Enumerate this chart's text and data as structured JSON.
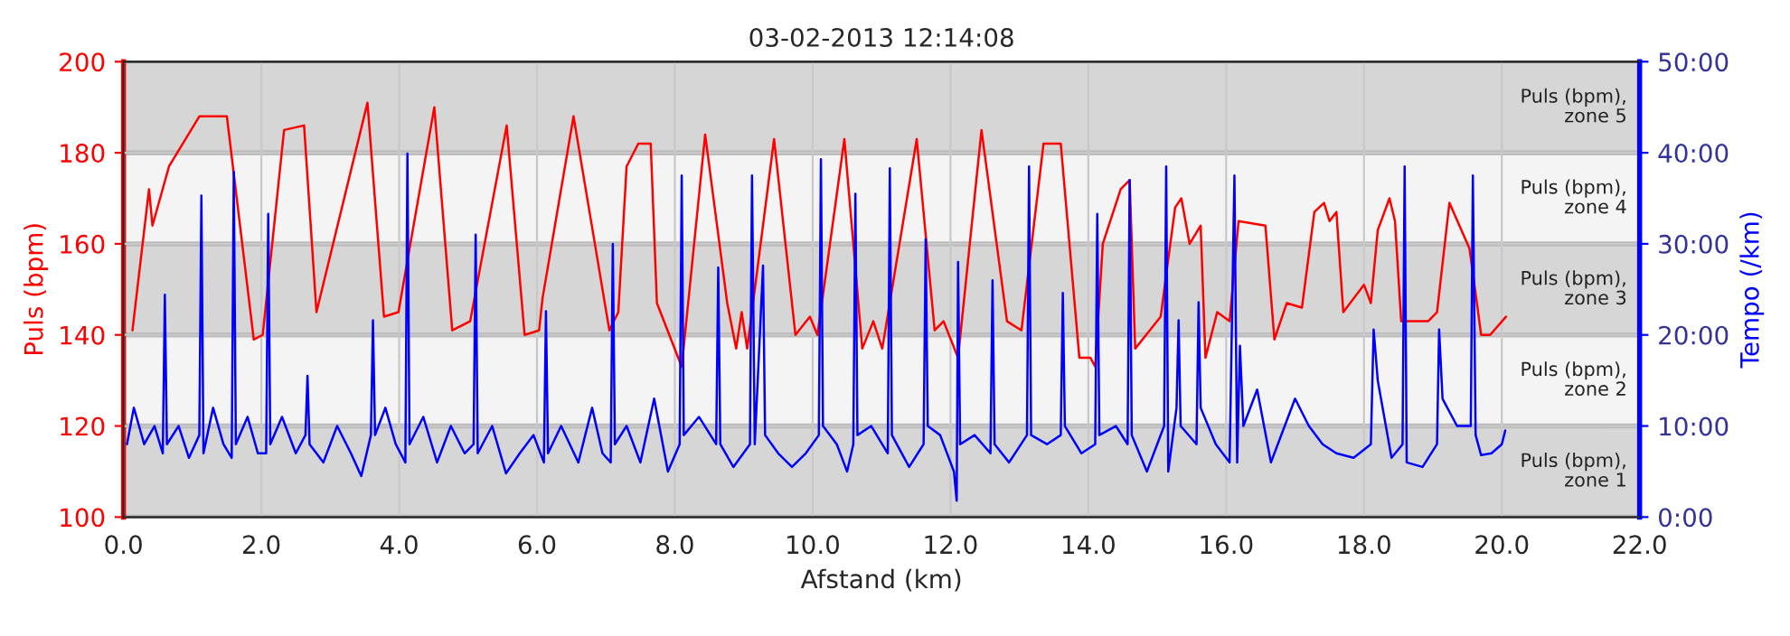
{
  "chart_data": {
    "type": "line",
    "title": "03-02-2013 12:14:08",
    "xlabel": "Afstand (km)",
    "ylabel": "Puls (bpm)",
    "y2label": "Tempo (/km)",
    "xlim": [
      0,
      22
    ],
    "xticks": [
      {
        "value": 0,
        "label": "0.0"
      },
      {
        "value": 2,
        "label": "2.0"
      },
      {
        "value": 4,
        "label": "4.0"
      },
      {
        "value": 6,
        "label": "6.0"
      },
      {
        "value": 8,
        "label": "8.0"
      },
      {
        "value": 10,
        "label": "10.0"
      },
      {
        "value": 12,
        "label": "12.0"
      },
      {
        "value": 14,
        "label": "14.0"
      },
      {
        "value": 16,
        "label": "16.0"
      },
      {
        "value": 18,
        "label": "18.0"
      },
      {
        "value": 20,
        "label": "20.0"
      },
      {
        "value": 22,
        "label": "22.0"
      }
    ],
    "ylim": [
      100,
      200
    ],
    "yticks": [
      100,
      120,
      140,
      160,
      180,
      200
    ],
    "y2lim": [
      0,
      50
    ],
    "y2ticks": [
      {
        "value": 0,
        "label": "0:00"
      },
      {
        "value": 10,
        "label": "10:00"
      },
      {
        "value": 20,
        "label": "20:00"
      },
      {
        "value": 30,
        "label": "30:00"
      },
      {
        "value": 40,
        "label": "40:00"
      },
      {
        "value": 50,
        "label": "50:00"
      }
    ],
    "grid": true,
    "bands": [
      {
        "axis": "y",
        "from": 100,
        "to": 120,
        "label": "Puls (bpm), zone 1",
        "color": "#d6d6d6"
      },
      {
        "axis": "y",
        "from": 120,
        "to": 140,
        "label": "Puls (bpm), zone 2",
        "color": "#f4f4f4"
      },
      {
        "axis": "y",
        "from": 140,
        "to": 160,
        "label": "Puls (bpm), zone 3",
        "color": "#d6d6d6"
      },
      {
        "axis": "y",
        "from": 160,
        "to": 180,
        "label": "Puls (bpm), zone 4",
        "color": "#f4f4f4"
      },
      {
        "axis": "y",
        "from": 180,
        "to": 200,
        "label": "Puls (bpm), zone 5",
        "color": "#d6d6d6"
      }
    ],
    "series": [
      {
        "color": "#ff0000",
        "axis": "y",
        "x": [
          0.13,
          0.37,
          0.42,
          0.66,
          1.1,
          1.5,
          1.89,
          2.02,
          2.33,
          2.62,
          2.8,
          3.54,
          3.78,
          3.99,
          4.07,
          4.51,
          4.77,
          5.03,
          5.56,
          5.82,
          6.03,
          6.08,
          6.53,
          7.05,
          7.18,
          7.3,
          7.47,
          7.65,
          7.74,
          8.1,
          8.44,
          8.76,
          8.89,
          8.97,
          9.05,
          9.44,
          9.75,
          9.96,
          10.07,
          10.46,
          10.72,
          10.88,
          11.01,
          11.51,
          11.77,
          11.9,
          12.11,
          12.45,
          12.82,
          13.03,
          13.35,
          13.6,
          13.87,
          14.03,
          14.1,
          14.21,
          14.47,
          14.6,
          14.68,
          15.05,
          15.26,
          15.35,
          15.47,
          15.63,
          15.7,
          15.87,
          16.05,
          16.18,
          16.57,
          16.7,
          16.88,
          17.1,
          17.28,
          17.42,
          17.5,
          17.6,
          17.7,
          18.0,
          18.1,
          18.2,
          18.37,
          18.45,
          18.54,
          18.93,
          19.06,
          19.24,
          19.53,
          19.63,
          19.7,
          19.83,
          20.06
        ],
        "values": [
          141,
          172,
          164,
          177,
          188,
          188,
          139,
          140,
          185,
          186,
          145,
          191,
          144,
          145,
          152,
          190,
          141,
          143,
          186,
          140,
          141,
          148,
          188,
          141,
          145,
          177,
          182,
          182,
          147,
          133,
          184,
          147,
          137,
          145,
          137,
          183,
          140,
          144,
          140,
          183,
          137,
          143,
          137,
          183,
          141,
          143,
          135,
          185,
          143,
          141,
          182,
          182,
          135,
          135,
          133,
          160,
          172,
          174,
          137,
          144,
          168,
          170,
          160,
          164,
          135,
          145,
          143,
          165,
          164,
          139,
          147,
          146,
          167,
          169,
          165,
          167,
          145,
          151,
          147,
          163,
          170,
          165,
          143,
          143,
          145,
          169,
          159,
          148,
          140,
          140,
          144
        ]
      },
      {
        "color": "#0000ff",
        "axis": "y2",
        "x": [
          0.05,
          0.15,
          0.3,
          0.45,
          0.57,
          0.6,
          0.63,
          0.8,
          0.95,
          1.1,
          1.13,
          1.16,
          1.3,
          1.45,
          1.57,
          1.6,
          1.63,
          1.8,
          1.95,
          2.07,
          2.1,
          2.13,
          2.3,
          2.5,
          2.64,
          2.67,
          2.7,
          2.9,
          3.1,
          3.3,
          3.45,
          3.59,
          3.62,
          3.65,
          3.8,
          3.95,
          4.09,
          4.12,
          4.15,
          4.35,
          4.55,
          4.75,
          4.95,
          5.08,
          5.11,
          5.14,
          5.35,
          5.55,
          5.75,
          5.95,
          6.1,
          6.13,
          6.16,
          6.35,
          6.6,
          6.8,
          6.95,
          7.07,
          7.1,
          7.13,
          7.3,
          7.5,
          7.7,
          7.9,
          8.07,
          8.1,
          8.13,
          8.35,
          8.6,
          8.63,
          8.66,
          8.85,
          9.09,
          9.12,
          9.16,
          9.28,
          9.31,
          9.5,
          9.7,
          9.9,
          10.09,
          10.12,
          10.15,
          10.35,
          10.5,
          10.59,
          10.62,
          10.65,
          10.85,
          11.09,
          11.12,
          11.15,
          11.4,
          11.61,
          11.64,
          11.67,
          11.85,
          12.05,
          12.09,
          12.11,
          12.14,
          12.35,
          12.58,
          12.61,
          12.64,
          12.85,
          13.11,
          13.14,
          13.17,
          13.4,
          13.6,
          13.63,
          13.66,
          13.9,
          14.1,
          14.13,
          14.16,
          14.4,
          14.57,
          14.6,
          14.63,
          14.85,
          15.1,
          15.13,
          15.16,
          15.28,
          15.31,
          15.34,
          15.57,
          15.6,
          15.63,
          15.85,
          16.05,
          16.12,
          16.16,
          16.2,
          16.25,
          16.45,
          16.65,
          17.0,
          17.2,
          17.4,
          17.6,
          17.85,
          18.1,
          18.14,
          18.2,
          18.4,
          18.56,
          18.59,
          18.62,
          18.85,
          19.06,
          19.09,
          19.14,
          19.35,
          19.55,
          19.58,
          19.62,
          19.7,
          19.85,
          20.0,
          20.05
        ],
        "values": [
          8,
          12,
          8,
          10,
          7,
          24.4,
          8,
          10,
          6.5,
          9,
          35.3,
          7,
          12,
          8,
          6.5,
          37.9,
          8,
          11,
          7,
          7,
          33.3,
          8,
          11,
          7,
          9,
          15.5,
          8,
          6,
          10,
          7,
          4.5,
          9,
          21.6,
          9,
          12,
          8,
          6,
          39.9,
          8,
          11,
          6,
          10,
          7,
          8,
          31,
          7,
          10,
          4.8,
          7,
          9,
          6,
          22.6,
          7,
          10,
          6,
          12,
          7,
          6,
          30,
          8,
          10,
          6,
          13,
          5,
          8,
          37.5,
          9,
          11,
          8,
          27.4,
          8,
          5.5,
          8,
          37.5,
          8,
          27.6,
          9,
          7,
          5.5,
          7,
          9,
          39.3,
          10,
          8,
          5,
          8,
          35.5,
          9,
          10,
          7,
          38.3,
          9,
          5.5,
          8,
          30.5,
          10,
          9,
          5,
          1.8,
          28,
          8,
          9,
          7,
          26,
          8,
          6,
          9,
          38.5,
          9,
          8,
          9,
          24.6,
          10,
          7,
          8,
          33.3,
          9,
          10,
          8,
          37,
          9,
          5,
          10,
          38.5,
          5,
          12,
          21.6,
          10,
          8,
          23.6,
          12,
          8,
          6,
          37.5,
          6,
          18.8,
          10,
          14,
          6,
          13,
          10,
          8,
          7,
          6.5,
          8,
          20.6,
          15,
          6.5,
          8,
          38.5,
          6,
          5.5,
          8,
          20.6,
          13,
          10,
          10,
          37.5,
          9,
          6.8,
          7,
          8,
          9.5
        ]
      }
    ]
  }
}
